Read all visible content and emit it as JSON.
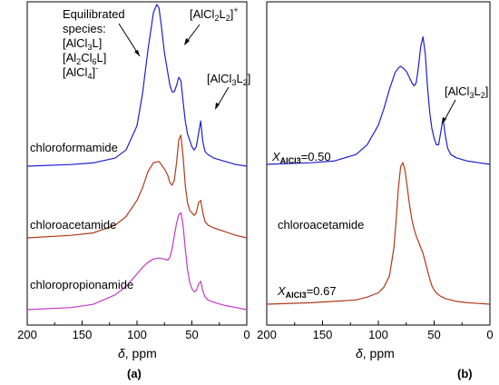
{
  "panels": [
    {
      "id": "a",
      "panel_label": "(a)",
      "xlabel_symbol": "δ",
      "xlabel_unit": ", ppm",
      "annotations": {
        "equilibrated": [
          "Equilibrated",
          "species:",
          "[AlCl3L]",
          "[Al2Cl6L]",
          "[AlCl4]-"
        ],
        "dimer_cation": "[AlCl2L2]+",
        "adduct": "[AlCl3L2]"
      },
      "trace_labels": [
        "chloroformamide",
        "chloroacetamide",
        "chloropropionamide"
      ]
    },
    {
      "id": "b",
      "panel_label": "(b)",
      "xlabel_symbol": "δ",
      "xlabel_unit": ", ppm",
      "annotations": {
        "adduct": "[AlCl3L2]"
      },
      "trace_labels": [
        "X_AlCl3=0.50",
        "chloroacetamide",
        "X_AlCl3=0.67"
      ]
    }
  ],
  "chart_data": [
    {
      "type": "line",
      "xlabel": "δ, ppm",
      "xlim": [
        200,
        0
      ],
      "xticks": [
        200,
        150,
        100,
        50,
        0
      ],
      "x_reversed": true,
      "series": [
        {
          "name": "chloroformamide",
          "color": "#1f1fd0",
          "x": [
            200,
            160,
            140,
            120,
            110,
            100,
            95,
            90,
            85,
            82,
            80,
            78,
            75,
            72,
            70,
            68,
            66,
            64,
            62,
            60,
            58,
            56,
            54,
            52,
            50,
            48,
            46,
            44,
            42,
            40,
            38,
            35,
            30,
            20,
            10,
            0
          ],
          "y": [
            0.0,
            0.01,
            0.02,
            0.05,
            0.1,
            0.25,
            0.45,
            0.72,
            0.95,
            1.0,
            0.98,
            0.88,
            0.7,
            0.58,
            0.5,
            0.46,
            0.46,
            0.5,
            0.55,
            0.53,
            0.4,
            0.28,
            0.2,
            0.16,
            0.12,
            0.1,
            0.12,
            0.2,
            0.28,
            0.15,
            0.09,
            0.07,
            0.05,
            0.03,
            0.01,
            0.0
          ]
        },
        {
          "name": "chloroacetamide",
          "color": "#b03a1a",
          "x": [
            200,
            160,
            140,
            120,
            110,
            100,
            95,
            90,
            85,
            80,
            75,
            72,
            70,
            68,
            66,
            64,
            62,
            60,
            58,
            56,
            54,
            52,
            50,
            48,
            46,
            44,
            42,
            40,
            38,
            35,
            30,
            20,
            10,
            0
          ],
          "y": [
            0.0,
            0.02,
            0.04,
            0.1,
            0.17,
            0.3,
            0.4,
            0.53,
            0.6,
            0.61,
            0.55,
            0.5,
            0.44,
            0.42,
            0.46,
            0.6,
            0.78,
            0.82,
            0.65,
            0.42,
            0.28,
            0.22,
            0.2,
            0.18,
            0.2,
            0.28,
            0.3,
            0.2,
            0.13,
            0.1,
            0.08,
            0.05,
            0.02,
            0.0
          ]
        },
        {
          "name": "chloropropionamide",
          "color": "#c43ac4",
          "x": [
            200,
            160,
            140,
            120,
            110,
            100,
            95,
            90,
            85,
            80,
            75,
            72,
            70,
            68,
            66,
            64,
            62,
            60,
            58,
            56,
            54,
            52,
            50,
            48,
            46,
            44,
            42,
            40,
            38,
            35,
            30,
            20,
            10,
            0
          ],
          "y": [
            0.0,
            0.02,
            0.05,
            0.14,
            0.22,
            0.34,
            0.4,
            0.45,
            0.48,
            0.49,
            0.48,
            0.47,
            0.5,
            0.58,
            0.7,
            0.82,
            0.9,
            0.92,
            0.8,
            0.58,
            0.38,
            0.26,
            0.2,
            0.17,
            0.18,
            0.24,
            0.27,
            0.18,
            0.12,
            0.09,
            0.07,
            0.04,
            0.02,
            0.0
          ]
        }
      ]
    },
    {
      "type": "line",
      "xlabel": "δ, ppm",
      "xlim": [
        200,
        0
      ],
      "xticks": [
        200,
        150,
        100,
        50,
        0
      ],
      "x_reversed": true,
      "series": [
        {
          "name": "X_AlCl3=0.50",
          "color": "#1f1fd0",
          "x": [
            200,
            160,
            140,
            120,
            110,
            100,
            95,
            90,
            85,
            82,
            80,
            78,
            75,
            72,
            70,
            68,
            66,
            64,
            62,
            60,
            58,
            56,
            54,
            52,
            50,
            48,
            46,
            44,
            42,
            40,
            38,
            35,
            30,
            20,
            10,
            0
          ],
          "y": [
            0.0,
            0.01,
            0.02,
            0.06,
            0.12,
            0.24,
            0.34,
            0.46,
            0.56,
            0.59,
            0.6,
            0.59,
            0.57,
            0.53,
            0.5,
            0.48,
            0.5,
            0.6,
            0.72,
            0.78,
            0.68,
            0.48,
            0.32,
            0.22,
            0.16,
            0.12,
            0.12,
            0.2,
            0.28,
            0.18,
            0.1,
            0.06,
            0.04,
            0.02,
            0.01,
            0.0
          ]
        },
        {
          "name": "X_AlCl3=0.67",
          "color": "#b03a1a",
          "x": [
            200,
            160,
            140,
            120,
            110,
            100,
            95,
            90,
            86,
            84,
            82,
            80,
            78,
            76,
            74,
            72,
            70,
            68,
            66,
            64,
            62,
            60,
            58,
            56,
            54,
            52,
            50,
            48,
            45,
            40,
            35,
            30,
            20,
            10,
            0
          ],
          "y": [
            0.0,
            0.01,
            0.02,
            0.03,
            0.05,
            0.08,
            0.12,
            0.2,
            0.4,
            0.6,
            0.82,
            0.97,
            1.0,
            0.94,
            0.82,
            0.7,
            0.6,
            0.53,
            0.48,
            0.44,
            0.4,
            0.36,
            0.3,
            0.24,
            0.18,
            0.13,
            0.1,
            0.08,
            0.06,
            0.04,
            0.03,
            0.02,
            0.01,
            0.005,
            0.0
          ]
        }
      ]
    }
  ]
}
